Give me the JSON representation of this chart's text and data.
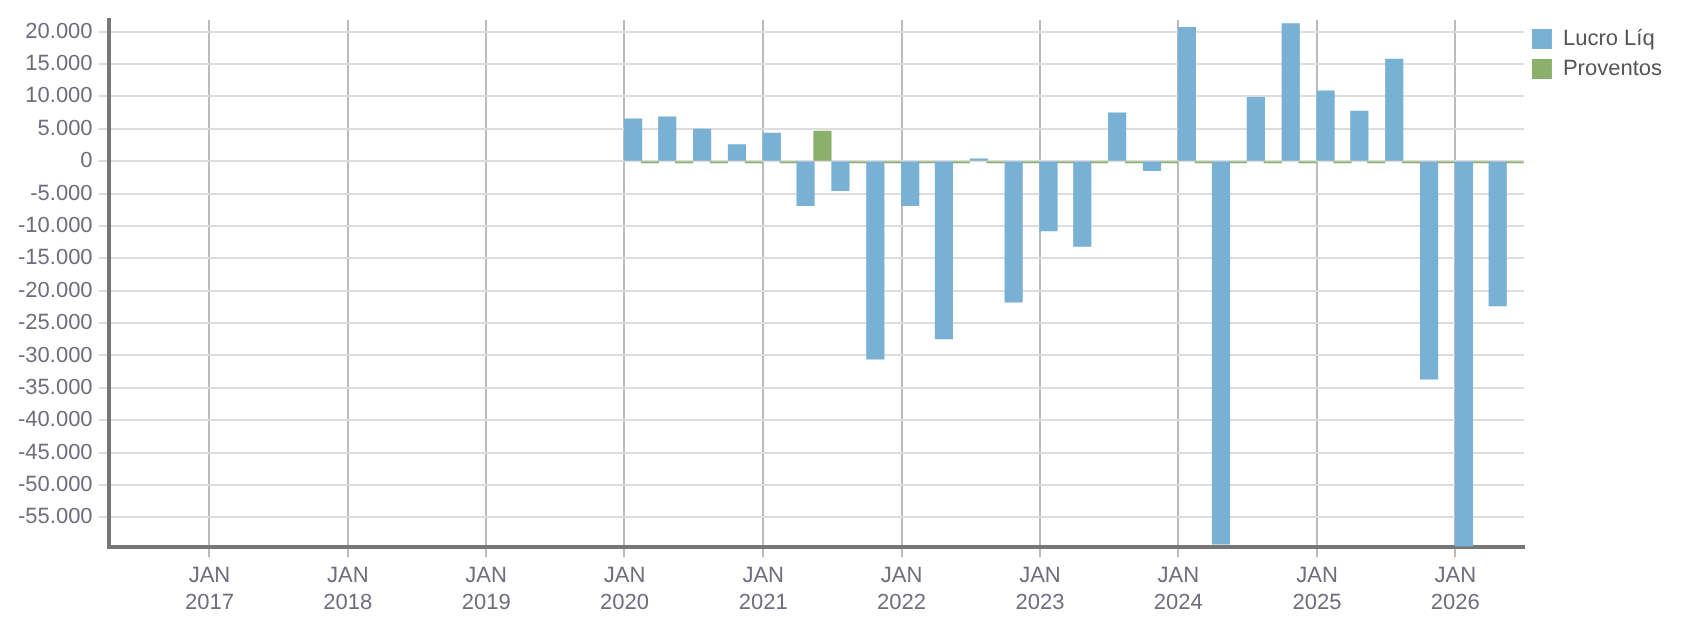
{
  "chart_data": {
    "type": "bar",
    "x": [
      "2020-02-15",
      "2020-05-15",
      "2020-08-15",
      "2020-11-15",
      "2021-02-15",
      "2021-05-15",
      "2021-08-15",
      "2021-11-15",
      "2022-02-15",
      "2022-05-15",
      "2022-08-15",
      "2022-11-15",
      "2023-02-15",
      "2023-05-15",
      "2023-08-15",
      "2023-11-15",
      "2024-02-15",
      "2024-05-15",
      "2024-08-15",
      "2024-11-15",
      "2025-02-15",
      "2025-05-15",
      "2025-08-15",
      "2025-11-15",
      "2026-02-15",
      "2026-05-15"
    ],
    "series": [
      {
        "name": "Lucro Líq",
        "color": "#78b1d3",
        "values": [
          6500,
          6800,
          4900,
          2500,
          4300,
          -6800,
          -4500,
          -30500,
          -6800,
          -27400,
          300,
          -21700,
          -10700,
          -13100,
          7400,
          -1400,
          20600,
          -59100,
          9800,
          21200,
          10800,
          7700,
          15700,
          -33600,
          -59400,
          -22300
        ]
      },
      {
        "name": "Proventos",
        "color": "#8bb06b",
        "values": [
          -200,
          -200,
          -200,
          -200,
          -200,
          4600,
          -200,
          -200,
          -200,
          -200,
          -200,
          -200,
          -200,
          -200,
          -200,
          -200,
          -200,
          -200,
          -200,
          -200,
          -200,
          -200,
          -200,
          -200,
          -200,
          -200
        ]
      }
    ],
    "xlim": [
      "2016-04-10",
      "2026-07-01"
    ],
    "xticks": [
      {
        "value": "2017-01",
        "label": "JAN 2017"
      },
      {
        "value": "2018-01",
        "label": "JAN 2018"
      },
      {
        "value": "2019-01",
        "label": "JAN 2019"
      },
      {
        "value": "2020-01",
        "label": "JAN 2020"
      },
      {
        "value": "2021-01",
        "label": "JAN 2021"
      },
      {
        "value": "2022-01",
        "label": "JAN 2022"
      },
      {
        "value": "2023-01",
        "label": "JAN 2023"
      },
      {
        "value": "2024-01",
        "label": "JAN 2024"
      },
      {
        "value": "2025-01",
        "label": "JAN 2025"
      },
      {
        "value": "2026-01",
        "label": "JAN 2026"
      }
    ],
    "ylim": [
      -59600,
      21800
    ],
    "yticks": [
      {
        "value": 20000,
        "label": "20.000"
      },
      {
        "value": 15000,
        "label": "15.000"
      },
      {
        "value": 10000,
        "label": "10.000"
      },
      {
        "value": 5000,
        "label": "5.000"
      },
      0,
      {
        "value": -5000,
        "label": "-5.000"
      },
      {
        "value": -10000,
        "label": "-10.000"
      },
      {
        "value": -15000,
        "label": "-15.000"
      },
      {
        "value": -20000,
        "label": "-20.000"
      },
      {
        "value": -25000,
        "label": "-25.000"
      },
      {
        "value": -30000,
        "label": "-30.000"
      },
      {
        "value": -35000,
        "label": "-35.000"
      },
      {
        "value": -40000,
        "label": "-40.000"
      },
      {
        "value": -45000,
        "label": "-45.000"
      },
      {
        "value": -50000,
        "label": "-50.000"
      },
      {
        "value": -55000,
        "label": "-55.000"
      }
    ],
    "grid": true,
    "legend": "top right"
  }
}
